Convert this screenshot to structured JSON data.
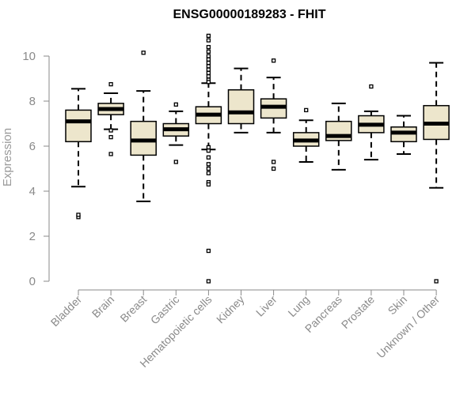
{
  "chart_data": {
    "type": "boxplot",
    "title": "ENSG00000189283 - FHIT",
    "ylabel": "Expression",
    "xlabel": "",
    "ylim": [
      0,
      10.5
    ],
    "yticks": [
      0,
      2,
      4,
      6,
      8,
      10
    ],
    "categories": [
      "Bladder",
      "Brain",
      "Breast",
      "Gastric",
      "Hematopoietic cells",
      "Kidney",
      "Liver",
      "Lung",
      "Pancreas",
      "Prostate",
      "Skin",
      "Unknown / Other"
    ],
    "boxes": [
      {
        "whisker_low": 4.2,
        "q1": 6.2,
        "median": 7.1,
        "q3": 7.6,
        "whisker_high": 8.55,
        "outliers": [
          2.85,
          2.95
        ]
      },
      {
        "whisker_low": 6.75,
        "q1": 7.4,
        "median": 7.65,
        "q3": 7.9,
        "whisker_high": 8.35,
        "outliers": [
          8.75,
          6.7,
          6.4,
          5.65
        ]
      },
      {
        "whisker_low": 3.55,
        "q1": 5.6,
        "median": 6.25,
        "q3": 7.1,
        "whisker_high": 8.45,
        "outliers": [
          10.15
        ]
      },
      {
        "whisker_low": 6.05,
        "q1": 6.45,
        "median": 6.75,
        "q3": 7.0,
        "whisker_high": 7.55,
        "outliers": [
          7.85,
          5.3
        ]
      },
      {
        "whisker_low": 5.85,
        "q1": 7.0,
        "median": 7.4,
        "q3": 7.75,
        "whisker_high": 8.8,
        "outliers": [
          10.9,
          10.7,
          10.4,
          10.2,
          10.0,
          9.85,
          9.7,
          9.55,
          9.4,
          9.25,
          9.1,
          8.95,
          8.85,
          5.95,
          5.8,
          5.5,
          5.2,
          5.0,
          4.8,
          4.4,
          4.3,
          1.35,
          0.0
        ]
      },
      {
        "whisker_low": 6.6,
        "q1": 7.0,
        "median": 7.5,
        "q3": 8.5,
        "whisker_high": 9.45,
        "outliers": []
      },
      {
        "whisker_low": 6.6,
        "q1": 7.25,
        "median": 7.75,
        "q3": 8.1,
        "whisker_high": 9.05,
        "outliers": [
          9.8,
          5.3,
          5.0
        ]
      },
      {
        "whisker_low": 5.3,
        "q1": 6.0,
        "median": 6.25,
        "q3": 6.6,
        "whisker_high": 7.15,
        "outliers": [
          7.6
        ]
      },
      {
        "whisker_low": 4.95,
        "q1": 6.25,
        "median": 6.45,
        "q3": 7.1,
        "whisker_high": 7.9,
        "outliers": []
      },
      {
        "whisker_low": 5.4,
        "q1": 6.6,
        "median": 6.95,
        "q3": 7.35,
        "whisker_high": 7.55,
        "outliers": [
          8.65
        ]
      },
      {
        "whisker_low": 5.65,
        "q1": 6.2,
        "median": 6.6,
        "q3": 6.85,
        "whisker_high": 7.35,
        "outliers": []
      },
      {
        "whisker_low": 4.15,
        "q1": 6.3,
        "median": 7.0,
        "q3": 7.8,
        "whisker_high": 9.7,
        "outliers": [
          0.0
        ]
      }
    ],
    "colors": {
      "box_fill": "#ede6cc",
      "box_stroke": "#000000",
      "median": "#000000",
      "axis": "#8a8a8a",
      "tick_text": "#8a8a8a",
      "title": "#000000"
    },
    "grid": false,
    "legend": "none"
  }
}
